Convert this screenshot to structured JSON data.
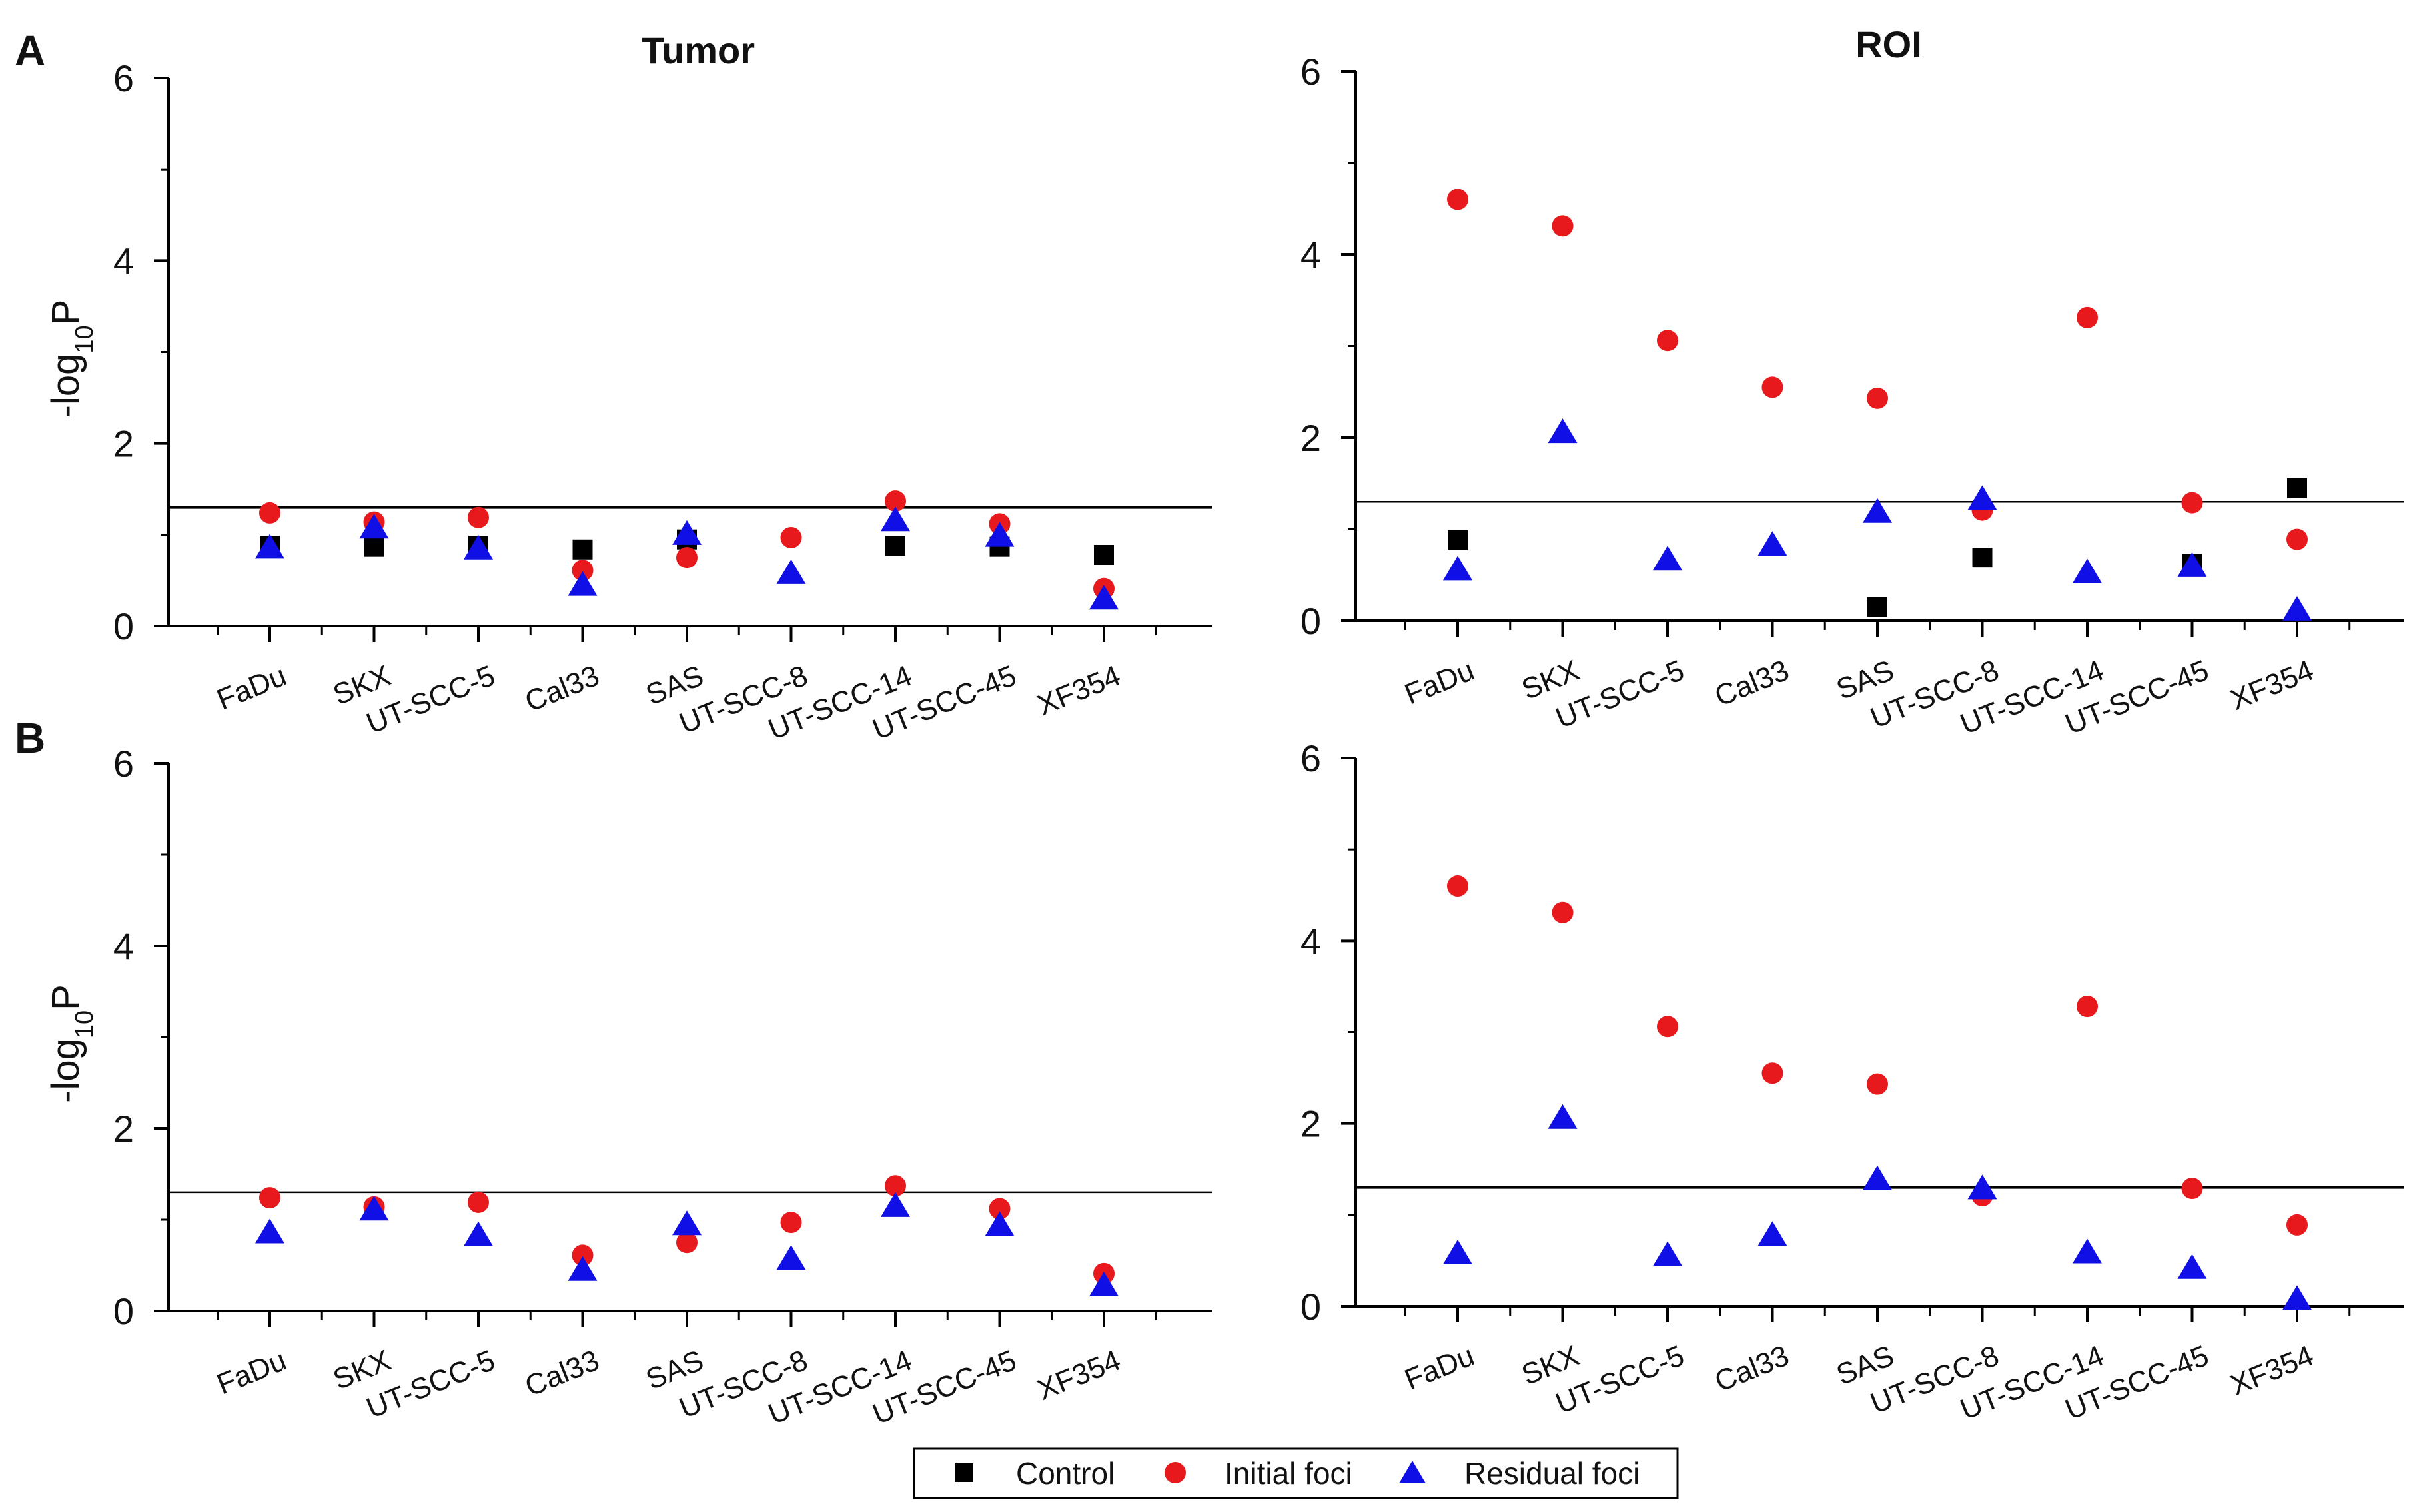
{
  "figure": {
    "panel_labels": [
      "A",
      "B"
    ],
    "legend": {
      "entries": [
        {
          "label": "Control",
          "marker": "square",
          "color": "#000000"
        },
        {
          "label": "Initial foci",
          "marker": "circle",
          "color": "#e8191c"
        },
        {
          "label": "Residual foci",
          "marker": "triangle",
          "color": "#1010e6"
        }
      ]
    }
  },
  "chart_data": [
    {
      "id": "A-tumor",
      "panel": "A",
      "title": "Tumor",
      "type": "scatter",
      "ylabel": "-log10P",
      "ylim": [
        0,
        6
      ],
      "yticks": [
        0,
        2,
        4,
        6
      ],
      "reference_line": 1.3,
      "categories": [
        "FaDu",
        "SKX",
        "UT-SCC-5",
        "Cal33",
        "SAS",
        "UT-SCC-8",
        "UT-SCC-14",
        "UT-SCC-45",
        "XF354"
      ],
      "series": [
        {
          "name": "Control",
          "values": [
            0.88,
            0.87,
            0.88,
            0.84,
            0.95,
            null,
            0.88,
            0.87,
            0.78
          ]
        },
        {
          "name": "Initial foci",
          "values": [
            1.24,
            1.14,
            1.19,
            0.61,
            0.75,
            0.97,
            1.37,
            1.12,
            0.41
          ]
        },
        {
          "name": "Residual foci",
          "values": [
            0.85,
            1.07,
            0.84,
            0.44,
            1.0,
            0.57,
            1.15,
            0.98,
            0.29
          ]
        }
      ]
    },
    {
      "id": "A-roi",
      "panel": "A",
      "title": "ROI",
      "type": "scatter",
      "ylabel": "",
      "ylim": [
        0,
        6
      ],
      "yticks": [
        0,
        2,
        4,
        6
      ],
      "reference_line": 1.3,
      "categories": [
        "FaDu",
        "SKX",
        "UT-SCC-5",
        "Cal33",
        "SAS",
        "UT-SCC-8",
        "UT-SCC-14",
        "UT-SCC-45",
        "XF354"
      ],
      "series": [
        {
          "name": "Control",
          "values": [
            0.88,
            null,
            null,
            null,
            0.15,
            0.69,
            null,
            0.62,
            1.45
          ]
        },
        {
          "name": "Initial foci",
          "values": [
            4.6,
            4.31,
            3.06,
            2.55,
            2.43,
            1.21,
            3.31,
            1.29,
            0.89
          ]
        },
        {
          "name": "Residual foci",
          "values": [
            0.55,
            2.05,
            0.66,
            0.82,
            1.18,
            1.32,
            0.52,
            0.59,
            0.11
          ]
        }
      ]
    },
    {
      "id": "B-tumor",
      "panel": "B",
      "title": "",
      "type": "scatter",
      "ylabel": "-log10P",
      "ylim": [
        0,
        6
      ],
      "yticks": [
        0,
        2,
        4,
        6
      ],
      "reference_line": 1.3,
      "categories": [
        "FaDu",
        "SKX",
        "UT-SCC-5",
        "Cal33",
        "SAS",
        "UT-SCC-8",
        "UT-SCC-14",
        "UT-SCC-45",
        "XF354"
      ],
      "series": [
        {
          "name": "Initial foci",
          "values": [
            1.24,
            1.14,
            1.19,
            0.61,
            0.75,
            0.97,
            1.37,
            1.12,
            0.41
          ]
        },
        {
          "name": "Residual foci",
          "values": [
            0.85,
            1.1,
            0.82,
            0.44,
            0.94,
            0.56,
            1.14,
            0.93,
            0.27
          ]
        }
      ]
    },
    {
      "id": "B-roi",
      "panel": "B",
      "title": "",
      "type": "scatter",
      "ylabel": "",
      "ylim": [
        0,
        6
      ],
      "yticks": [
        0,
        2,
        4,
        6
      ],
      "reference_line": 1.3,
      "categories": [
        "FaDu",
        "SKX",
        "UT-SCC-5",
        "Cal33",
        "SAS",
        "UT-SCC-8",
        "UT-SCC-14",
        "UT-SCC-45",
        "XF354"
      ],
      "series": [
        {
          "name": "Initial foci",
          "values": [
            4.6,
            4.31,
            3.06,
            2.55,
            2.43,
            1.21,
            3.28,
            1.29,
            0.89
          ]
        },
        {
          "name": "Residual foci",
          "values": [
            0.57,
            2.05,
            0.55,
            0.77,
            1.38,
            1.28,
            0.58,
            0.41,
            0.07
          ]
        }
      ]
    }
  ]
}
